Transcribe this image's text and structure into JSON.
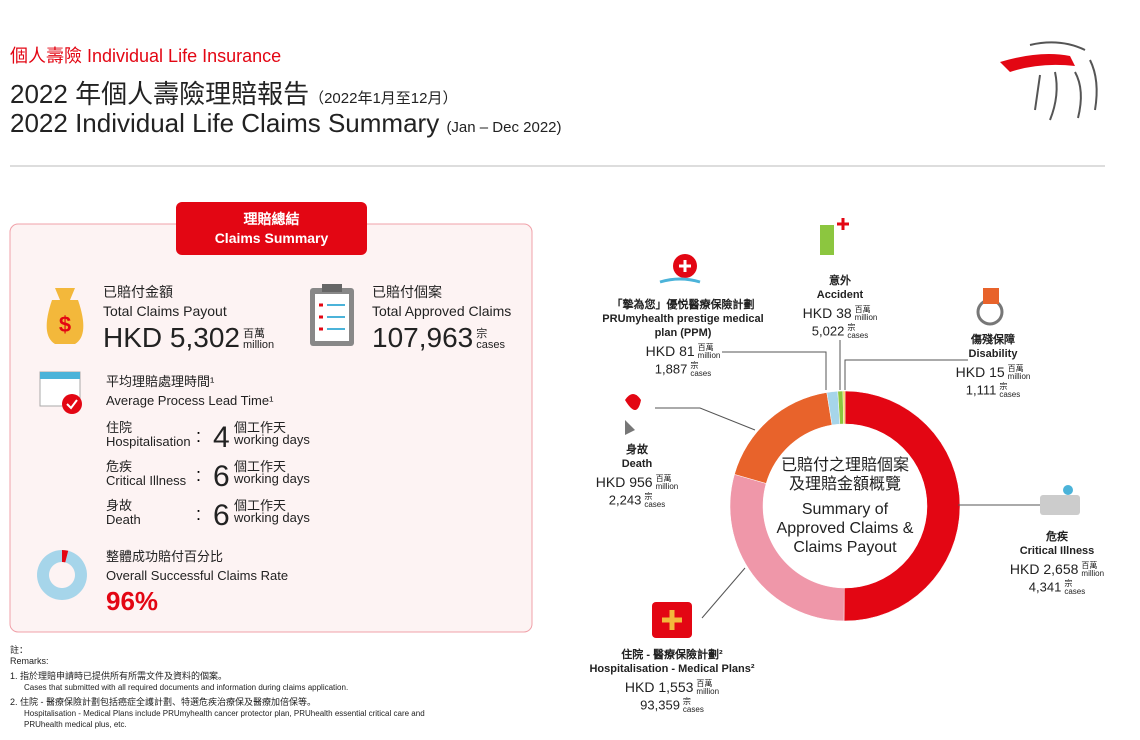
{
  "header": {
    "brand": "個人壽險 Individual Life Insurance",
    "title_zh": "2022 年個人壽險理賠報告",
    "period_zh": "（2022年1月至12月）",
    "title_en": "2022 Individual Life Claims Summary",
    "period_en": "(Jan – Dec 2022)"
  },
  "summary": {
    "tab_zh": "理賠總結",
    "tab_en": "Claims Summary",
    "payout_zh": "已賠付金額",
    "payout_en": "Total Claims Payout",
    "payout": "HKD 5,302",
    "payout_unit": [
      "百萬",
      "million"
    ],
    "claims_zh": "已賠付個案",
    "claims_en": "Total Approved Claims",
    "claims": "107,963",
    "claims_unit": [
      "宗",
      "cases"
    ],
    "lead_zh": "平均理賠處理時間¹",
    "lead_en": "Average Process Lead Time¹",
    "lead_rows": [
      {
        "zh": "住院",
        "en": "Hospitalisation",
        "days": "4"
      },
      {
        "zh": "危疾",
        "en": "Critical Illness",
        "days": "6"
      },
      {
        "zh": "身故",
        "en": "Death",
        "days": "6"
      }
    ],
    "days_unit": [
      "個工作天",
      "working days"
    ],
    "rate_zh": "整體成功賠付百分比",
    "rate_en": "Overall Successful Claims Rate",
    "success_rate": 96,
    "success_rate_label": "96%"
  },
  "remarks": {
    "head_zh": "註：",
    "head_en": "Remarks:",
    "notes": [
      {
        "zh": "1.  指於理賠申請時已提供所有所需文件及資料的個案。",
        "en": "Cases that submitted with all required documents and information during claims application."
      },
      {
        "zh": "2.  住院 - 醫療保險計劃包括癌症全護計劃、特選危疾治療保及醫療加倍保等。",
        "en": "Hospitalisation - Medical Plans include PRUmyhealth cancer protector plan, PRUhealth essential critical care and PRUhealth medical plus, etc."
      }
    ]
  },
  "chart_data": {
    "type": "donut",
    "title_zh": [
      "已賠付之理賠個案",
      "及理賠金額概覽"
    ],
    "title": [
      "Summary of",
      "Approved Claims &",
      "Claims Payout"
    ],
    "categories_zh": [
      "危疾",
      "住院 - 醫療保險計劃²",
      "身故",
      "「摯為您」優悦醫療保險計劃",
      "意外",
      "傷殘保障"
    ],
    "categories": [
      "Critical Illness",
      "Hospitalisation - Medical Plans²",
      "Death",
      "PRUmyhealth prestige medical plan (PPM)",
      "Accident",
      "Disability"
    ],
    "values": [
      2658,
      1553,
      956,
      81,
      38,
      15
    ],
    "value_labels": [
      "HKD 2,658",
      "HKD 1,553",
      "HKD 956",
      "HKD 81",
      "HKD 38",
      "HKD 15"
    ],
    "value_unit": [
      "百萬",
      "million"
    ],
    "cases": [
      4341,
      93359,
      2243,
      1887,
      5022,
      1111
    ],
    "cases_labels": [
      "4,341",
      "93,359",
      "2,243",
      "1,887",
      "5,022",
      "1,111"
    ],
    "cases_unit": [
      "宗",
      "cases"
    ],
    "colors": [
      "#e30613",
      "#ef97a9",
      "#e8632b",
      "#a6d5ea",
      "#8cc63f",
      "#f2d04a"
    ]
  }
}
